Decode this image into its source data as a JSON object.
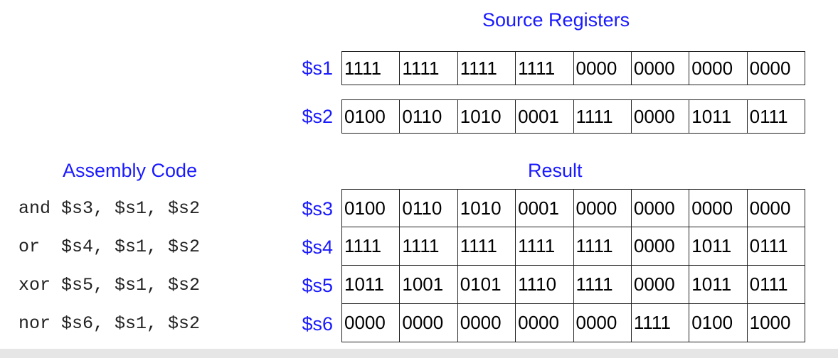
{
  "headings": {
    "source": "Source Registers",
    "assembly": "Assembly Code",
    "result": "Result"
  },
  "source_registers": [
    {
      "name": "$s1",
      "nibbles": [
        "1111",
        "1111",
        "1111",
        "1111",
        "0000",
        "0000",
        "0000",
        "0000"
      ]
    },
    {
      "name": "$s2",
      "nibbles": [
        "0100",
        "0110",
        "1010",
        "0001",
        "1111",
        "0000",
        "1011",
        "0111"
      ]
    }
  ],
  "assembly_code": [
    "and $s3, $s1, $s2",
    "or  $s4, $s1, $s2",
    "xor $s5, $s1, $s2",
    "nor $s6, $s1, $s2"
  ],
  "result_registers": [
    {
      "name": "$s3",
      "nibbles": [
        "0100",
        "0110",
        "1010",
        "0001",
        "0000",
        "0000",
        "0000",
        "0000"
      ]
    },
    {
      "name": "$s4",
      "nibbles": [
        "1111",
        "1111",
        "1111",
        "1111",
        "1111",
        "0000",
        "1011",
        "0111"
      ]
    },
    {
      "name": "$s5",
      "nibbles": [
        "1011",
        "1001",
        "0101",
        "1110",
        "1111",
        "0000",
        "1011",
        "0111"
      ]
    },
    {
      "name": "$s6",
      "nibbles": [
        "0000",
        "0000",
        "0000",
        "0000",
        "0000",
        "1111",
        "0100",
        "1000"
      ]
    }
  ]
}
